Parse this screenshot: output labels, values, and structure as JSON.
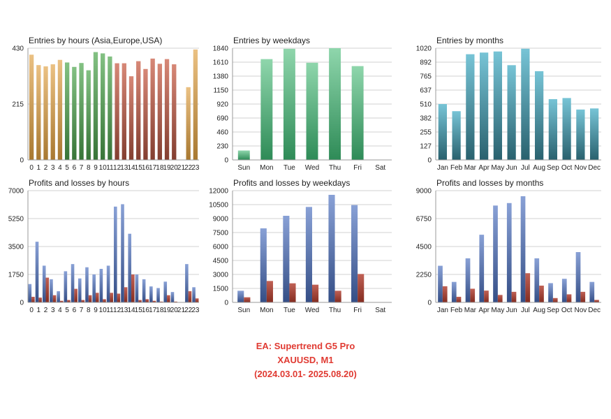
{
  "caption": {
    "line1": "EA: Supertrend G5  Pro",
    "line2": "XAUUSD, M1",
    "line3": "(2024.03.01- 2025.08.20)"
  },
  "colors": {
    "orange": "#e0a040",
    "green": "#4ea64e",
    "red": "#c9604a",
    "teal_light": "#8fd6ac",
    "teal_dark": "#2e8b57",
    "cyan": "#4ab0c8",
    "blue": "#4a6fc0",
    "loss_red": "#b03a2a",
    "grid": "#d0d0d0"
  },
  "chart_data": [
    {
      "type": "bar",
      "title": "Entries by hours (Asia,Europe,USA)",
      "categories": [
        "0",
        "1",
        "2",
        "3",
        "4",
        "5",
        "6",
        "7",
        "8",
        "9",
        "10",
        "11",
        "12",
        "13",
        "14",
        "15",
        "16",
        "17",
        "18",
        "19",
        "20",
        "21",
        "22",
        "23"
      ],
      "values": [
        405,
        365,
        360,
        368,
        385,
        375,
        358,
        373,
        345,
        415,
        410,
        398,
        372,
        372,
        322,
        380,
        350,
        390,
        370,
        388,
        368,
        0,
        280,
        425
      ],
      "yticks": [
        "430",
        "215",
        "0"
      ],
      "ylim": [
        0,
        430
      ],
      "color_groups": [
        "orange",
        "orange",
        "orange",
        "orange",
        "orange",
        "green",
        "green",
        "green",
        "green",
        "green",
        "green",
        "green",
        "red",
        "red",
        "red",
        "red",
        "red",
        "red",
        "red",
        "red",
        "red",
        "red",
        "orange",
        "orange"
      ]
    },
    {
      "type": "bar",
      "title": "Entries by weekdays",
      "categories": [
        "Sun",
        "Mon",
        "Tue",
        "Wed",
        "Thu",
        "Fri",
        "Sat"
      ],
      "values": [
        155,
        1660,
        1830,
        1600,
        1840,
        1545,
        0
      ],
      "yticks": [
        "1840",
        "1610",
        "1380",
        "1150",
        "920",
        "690",
        "460",
        "230",
        "0"
      ],
      "ylim": [
        0,
        1840
      ]
    },
    {
      "type": "bar",
      "title": "Entries by months",
      "categories": [
        "Jan",
        "Feb",
        "Mar",
        "Apr",
        "May",
        "Jun",
        "Jul",
        "Aug",
        "Sep",
        "Oct",
        "Nov",
        "Dec"
      ],
      "values": [
        510,
        445,
        965,
        980,
        990,
        865,
        1015,
        810,
        555,
        565,
        460,
        470
      ],
      "yticks": [
        "1020",
        "892",
        "765",
        "637",
        "510",
        "382",
        "255",
        "127",
        "0"
      ],
      "ylim": [
        0,
        1020
      ]
    },
    {
      "type": "bar",
      "title": "Profits and losses by hours",
      "categories": [
        "0",
        "1",
        "2",
        "3",
        "4",
        "5",
        "6",
        "7",
        "8",
        "9",
        "10",
        "11",
        "12",
        "13",
        "14",
        "15",
        "16",
        "17",
        "18",
        "19",
        "20",
        "21",
        "22",
        "23"
      ],
      "series": [
        {
          "values": [
            1150,
            3800,
            2300,
            1450,
            700,
            1950,
            2400,
            1500,
            2200,
            1750,
            2100,
            2300,
            6000,
            6150,
            4300,
            1750,
            1450,
            1000,
            900,
            1300,
            650,
            0,
            2400,
            950
          ]
        },
        {
          "values": [
            350,
            300,
            1550,
            450,
            100,
            150,
            850,
            150,
            450,
            600,
            200,
            600,
            550,
            950,
            1750,
            150,
            200,
            100,
            50,
            450,
            50,
            0,
            700,
            250
          ]
        }
      ],
      "yticks": [
        "7000",
        "5250",
        "3500",
        "1750",
        "0"
      ],
      "ylim": [
        0,
        7000
      ]
    },
    {
      "type": "bar",
      "title": "Profits and losses by weekdays",
      "categories": [
        "Sun",
        "Mon",
        "Tue",
        "Wed",
        "Thu",
        "Fri",
        "Sat"
      ],
      "series": [
        {
          "values": [
            1250,
            7950,
            9300,
            10250,
            11550,
            10450,
            0
          ]
        },
        {
          "values": [
            550,
            2300,
            2050,
            1900,
            1250,
            3050,
            0
          ]
        }
      ],
      "yticks": [
        "12000",
        "10500",
        "9000",
        "7500",
        "6000",
        "4500",
        "3000",
        "1500",
        "0"
      ],
      "ylim": [
        0,
        12000
      ]
    },
    {
      "type": "bar",
      "title": "Profits and losses by months",
      "categories": [
        "Jan",
        "Feb",
        "Mar",
        "Apr",
        "May",
        "Jun",
        "Jul",
        "Aug",
        "Sep",
        "Oct",
        "Nov",
        "Dec"
      ],
      "series": [
        {
          "values": [
            2950,
            1650,
            3550,
            5450,
            7800,
            8000,
            8550,
            3550,
            1550,
            1900,
            4050,
            1650
          ]
        },
        {
          "values": [
            1300,
            450,
            1100,
            950,
            600,
            850,
            2350,
            1350,
            350,
            650,
            850,
            200
          ]
        }
      ],
      "yticks": [
        "9000",
        "6750",
        "4500",
        "2250",
        "0"
      ],
      "ylim": [
        0,
        9000
      ]
    }
  ]
}
